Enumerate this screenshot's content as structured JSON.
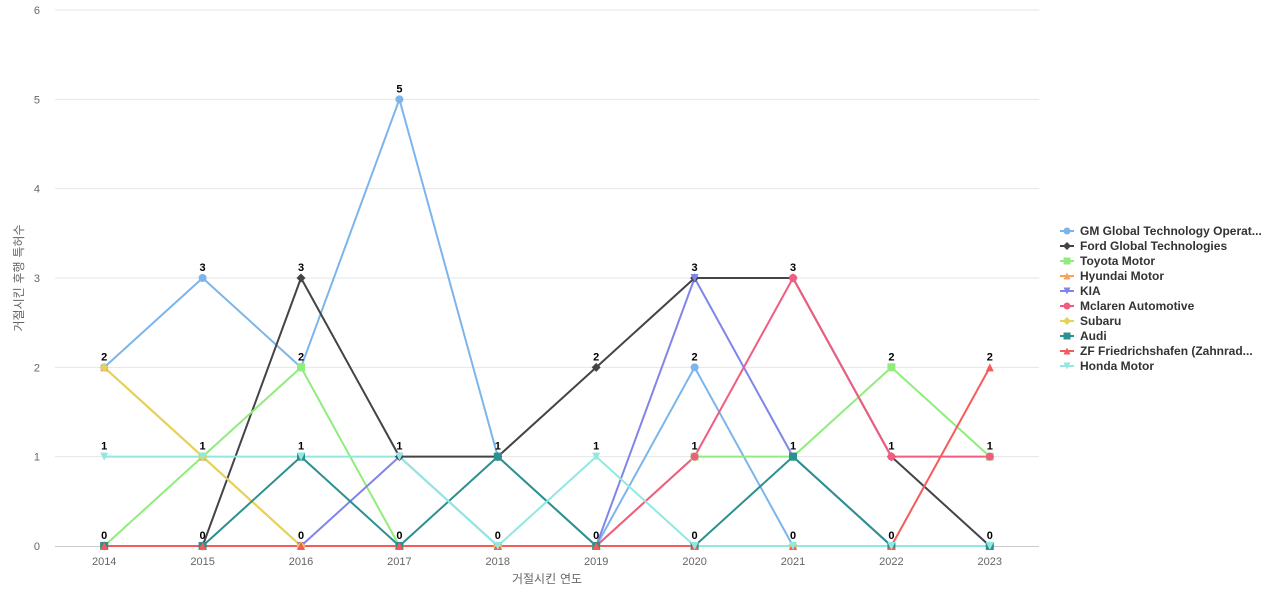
{
  "chart_data": {
    "type": "line",
    "title": "",
    "xlabel": "거절시킨 연도",
    "ylabel": "거절시킨 후행 특허수",
    "categories": [
      "2014",
      "2015",
      "2016",
      "2017",
      "2018",
      "2019",
      "2020",
      "2021",
      "2022",
      "2023"
    ],
    "ylim": [
      0,
      6
    ],
    "yticks": [
      "0",
      "1",
      "2",
      "3",
      "4",
      "5",
      "6"
    ],
    "grid": true,
    "legend_position": "right",
    "series": [
      {
        "name": "GM Global Technology Operat...",
        "color": "#7cb5ec",
        "marker": "circle",
        "values": [
          2,
          3,
          2,
          5,
          1,
          0,
          2,
          0,
          0,
          0
        ]
      },
      {
        "name": "Ford Global Technologies",
        "color": "#434348",
        "marker": "diamond",
        "values": [
          0,
          0,
          3,
          1,
          1,
          2,
          3,
          3,
          1,
          0
        ]
      },
      {
        "name": "Toyota Motor",
        "color": "#90ed7d",
        "marker": "square",
        "values": [
          0,
          1,
          2,
          0,
          0,
          0,
          1,
          1,
          2,
          1
        ]
      },
      {
        "name": "Hyundai Motor",
        "color": "#f7a35c",
        "marker": "triangle",
        "values": [
          2,
          1,
          0,
          0,
          0,
          0,
          0,
          0,
          0,
          0
        ]
      },
      {
        "name": "KIA",
        "color": "#8085e9",
        "marker": "triangle-down",
        "values": [
          0,
          0,
          0,
          1,
          0,
          0,
          3,
          1,
          0,
          0
        ]
      },
      {
        "name": "Mclaren Automotive",
        "color": "#f15c80",
        "marker": "circle",
        "values": [
          0,
          0,
          0,
          0,
          0,
          0,
          1,
          3,
          1,
          1
        ]
      },
      {
        "name": "Subaru",
        "color": "#e4d354",
        "marker": "diamond",
        "values": [
          2,
          1,
          0,
          0,
          0,
          0,
          0,
          0,
          0,
          0
        ]
      },
      {
        "name": "Audi",
        "color": "#2b908f",
        "marker": "square",
        "values": [
          0,
          0,
          1,
          0,
          1,
          0,
          0,
          1,
          0,
          0
        ]
      },
      {
        "name": "ZF Friedrichshafen (Zahnrad...",
        "color": "#f45b5b",
        "marker": "triangle",
        "values": [
          0,
          0,
          0,
          0,
          0,
          0,
          0,
          0,
          0,
          2
        ]
      },
      {
        "name": "Honda Motor",
        "color": "#91e8e1",
        "marker": "triangle-down",
        "values": [
          1,
          1,
          1,
          1,
          0,
          1,
          0,
          0,
          0,
          0
        ]
      }
    ],
    "data_labels": [
      {
        "x": "2014",
        "text": "2",
        "value": 2
      },
      {
        "x": "2014",
        "text": "1",
        "value": 1
      },
      {
        "x": "2014",
        "text": "0",
        "value": 0
      },
      {
        "x": "2015",
        "text": "3",
        "value": 3
      },
      {
        "x": "2015",
        "text": "1",
        "value": 1
      },
      {
        "x": "2015",
        "text": "0",
        "value": 0
      },
      {
        "x": "2016",
        "text": "3",
        "value": 3
      },
      {
        "x": "2016",
        "text": "2",
        "value": 2
      },
      {
        "x": "2016",
        "text": "1",
        "value": 1
      },
      {
        "x": "2016",
        "text": "0",
        "value": 0
      },
      {
        "x": "2017",
        "text": "5",
        "value": 5
      },
      {
        "x": "2017",
        "text": "1",
        "value": 1
      },
      {
        "x": "2017",
        "text": "0",
        "value": 0
      },
      {
        "x": "2018",
        "text": "1",
        "value": 1
      },
      {
        "x": "2018",
        "text": "0",
        "value": 0
      },
      {
        "x": "2019",
        "text": "2",
        "value": 2
      },
      {
        "x": "2019",
        "text": "1",
        "value": 1
      },
      {
        "x": "2019",
        "text": "0",
        "value": 0
      },
      {
        "x": "2020",
        "text": "3",
        "value": 3
      },
      {
        "x": "2020",
        "text": "2",
        "value": 2
      },
      {
        "x": "2020",
        "text": "1",
        "value": 1
      },
      {
        "x": "2020",
        "text": "0",
        "value": 0
      },
      {
        "x": "2021",
        "text": "3",
        "value": 3
      },
      {
        "x": "2021",
        "text": "1",
        "value": 1
      },
      {
        "x": "2021",
        "text": "0",
        "value": 0
      },
      {
        "x": "2022",
        "text": "2",
        "value": 2
      },
      {
        "x": "2022",
        "text": "1",
        "value": 1
      },
      {
        "x": "2022",
        "text": "0",
        "value": 0
      },
      {
        "x": "2023",
        "text": "2",
        "value": 2
      },
      {
        "x": "2023",
        "text": "1",
        "value": 1
      },
      {
        "x": "2023",
        "text": "0",
        "value": 0
      }
    ]
  }
}
